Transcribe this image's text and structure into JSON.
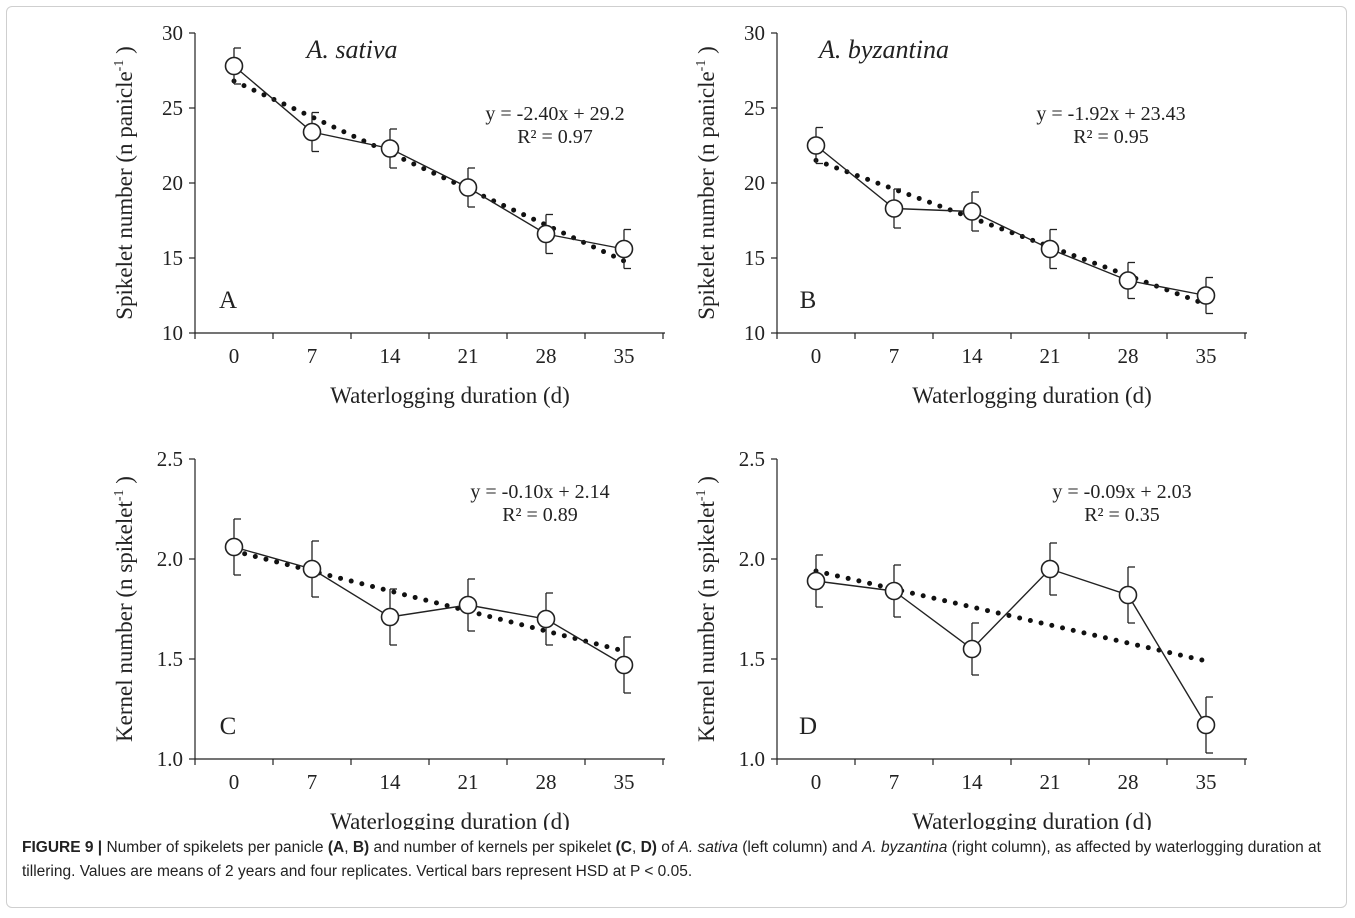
{
  "chart_data": [
    {
      "panel": "A",
      "type": "line",
      "species": "A. sativa",
      "ylabel": "Spikelet number (n panicle",
      "ylabel_sup": "-1",
      "ylabel_end": " )",
      "xlabel": "Waterlogging duration (d)",
      "x": [
        0,
        7,
        14,
        21,
        28,
        35
      ],
      "ylim": [
        10,
        30
      ],
      "yticks": [
        10,
        15,
        20,
        25,
        30
      ],
      "ytick_labels": [
        "10",
        "15",
        "20",
        "25",
        "30"
      ],
      "series": [
        {
          "values": [
            27.8,
            23.4,
            22.3,
            19.7,
            16.6,
            15.6
          ],
          "errors": [
            1.2,
            1.3,
            1.3,
            1.3,
            1.3,
            1.3
          ]
        }
      ],
      "trend": {
        "slope": -2.4,
        "intercept": 29.2,
        "x_step": 7,
        "eq_line1": "y = -2.40x + 29.2",
        "eq_line2": "R² = 0.97"
      }
    },
    {
      "panel": "B",
      "type": "line",
      "species": "A. byzantina",
      "ylabel": "Spikelet number (n panicle",
      "ylabel_sup": "-1",
      "ylabel_end": " )",
      "xlabel": "Waterlogging duration (d)",
      "x": [
        0,
        7,
        14,
        21,
        28,
        35
      ],
      "ylim": [
        10,
        30
      ],
      "yticks": [
        10,
        15,
        20,
        25,
        30
      ],
      "ytick_labels": [
        "10",
        "15",
        "20",
        "25",
        "30"
      ],
      "series": [
        {
          "values": [
            22.5,
            18.3,
            18.1,
            15.6,
            13.5,
            12.5
          ],
          "errors": [
            1.2,
            1.3,
            1.3,
            1.3,
            1.2,
            1.2
          ]
        }
      ],
      "trend": {
        "slope": -1.92,
        "intercept": 23.43,
        "x_step": 7,
        "eq_line1": "y = -1.92x + 23.43",
        "eq_line2": "R² = 0.95"
      }
    },
    {
      "panel": "C",
      "type": "line",
      "species": "",
      "ylabel": "Kernel number (n spikelet",
      "ylabel_sup": "-1",
      "ylabel_end": " )",
      "xlabel": "Waterlogging duration (d)",
      "x": [
        0,
        7,
        14,
        21,
        28,
        35
      ],
      "ylim": [
        1.0,
        2.5
      ],
      "yticks": [
        1.0,
        1.5,
        2.0,
        2.5
      ],
      "ytick_labels": [
        "1.0",
        "1.5",
        "2.0",
        "2.5"
      ],
      "series": [
        {
          "values": [
            2.06,
            1.95,
            1.71,
            1.77,
            1.7,
            1.47
          ],
          "errors": [
            0.14,
            0.14,
            0.14,
            0.13,
            0.13,
            0.14
          ]
        }
      ],
      "trend": {
        "slope": -0.1,
        "intercept": 2.14,
        "x_step": 7,
        "eq_line1": "y = -0.10x + 2.14",
        "eq_line2": "R² = 0.89"
      }
    },
    {
      "panel": "D",
      "type": "line",
      "species": "",
      "ylabel": "Kernel number (n spikelet",
      "ylabel_sup": "-1",
      "ylabel_end": " )",
      "xlabel": "Waterlogging duration (d)",
      "x": [
        0,
        7,
        14,
        21,
        28,
        35
      ],
      "ylim": [
        1.0,
        2.5
      ],
      "yticks": [
        1.0,
        1.5,
        2.0,
        2.5
      ],
      "ytick_labels": [
        "1.0",
        "1.5",
        "2.0",
        "2.5"
      ],
      "series": [
        {
          "values": [
            1.89,
            1.84,
            1.55,
            1.95,
            1.82,
            1.17
          ],
          "errors": [
            0.13,
            0.13,
            0.13,
            0.13,
            0.14,
            0.14
          ]
        }
      ],
      "trend": {
        "slope": -0.09,
        "intercept": 2.03,
        "x_step": 7,
        "eq_line1": "y = -0.09x + 2.03",
        "eq_line2": "R² = 0.35"
      }
    }
  ],
  "caption": {
    "label": "FIGURE 9 |",
    "t1": " Number of spikelets per panicle ",
    "b1": "(A",
    "t2": ", ",
    "b2": "B)",
    "t3": " and number of kernels per spikelet ",
    "b3": "(C",
    "t4": ", ",
    "b4": "D)",
    "t5": " of ",
    "i1": "A. sativa",
    "t6": " (left column) and ",
    "i2": "A. byzantina",
    "t7": " (right column), as affected by waterlogging duration at tillering. Values are means of 2 years and four replicates. Vertical bars represent HSD at P < 0.05."
  }
}
